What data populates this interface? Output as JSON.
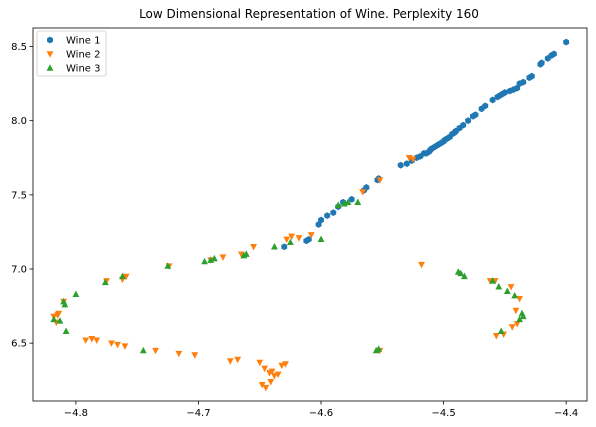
{
  "chart_data": {
    "type": "scatter",
    "title": "Low Dimensional Representation of Wine. Perplexity 160",
    "xlabel": "",
    "ylabel": "",
    "xlim": [
      -4.835,
      -4.383
    ],
    "ylim": [
      6.11,
      8.625
    ],
    "xticks": [
      -4.8,
      -4.7,
      -4.6,
      -4.5,
      -4.4
    ],
    "xtick_labels": [
      "−4.8",
      "−4.7",
      "−4.6",
      "−4.5",
      "−4.4"
    ],
    "yticks": [
      6.5,
      7.0,
      7.5,
      8.0,
      8.5
    ],
    "ytick_labels": [
      "6.5",
      "7.0",
      "7.5",
      "8.0",
      "8.5"
    ],
    "grid": false,
    "legend_position": "top-left",
    "series": [
      {
        "name": "Wine 1",
        "color": "#1f77b4",
        "marker": "hexagon",
        "x": [
          -4.4,
          -4.41,
          -4.412,
          -4.415,
          -4.42,
          -4.421,
          -4.428,
          -4.43,
          -4.435,
          -4.438,
          -4.44,
          -4.443,
          -4.446,
          -4.45,
          -4.452,
          -4.454,
          -4.456,
          -4.46,
          -4.466,
          -4.469,
          -4.474,
          -4.476,
          -4.48,
          -4.484,
          -4.487,
          -4.49,
          -4.491,
          -4.493,
          -4.495,
          -4.497,
          -4.499,
          -4.5,
          -4.502,
          -4.504,
          -4.506,
          -4.508,
          -4.51,
          -4.511,
          -4.512,
          -4.514,
          -4.516,
          -4.519,
          -4.522,
          -4.526,
          -4.53,
          -4.535,
          -4.553,
          -4.554,
          -4.563,
          -4.565,
          -4.575,
          -4.582,
          -4.586,
          -4.59,
          -4.595,
          -4.6,
          -4.602,
          -4.61,
          -4.612,
          -4.63
        ],
        "y": [
          8.53,
          8.45,
          8.44,
          8.42,
          8.39,
          8.38,
          8.3,
          8.29,
          8.26,
          8.25,
          8.22,
          8.21,
          8.2,
          8.19,
          8.18,
          8.17,
          8.16,
          8.14,
          8.1,
          8.08,
          8.04,
          8.03,
          8.0,
          7.97,
          7.95,
          7.93,
          7.92,
          7.91,
          7.89,
          7.88,
          7.87,
          7.86,
          7.85,
          7.84,
          7.83,
          7.82,
          7.81,
          7.8,
          7.79,
          7.78,
          7.78,
          7.76,
          7.75,
          7.73,
          7.71,
          7.7,
          7.61,
          7.6,
          7.55,
          7.53,
          7.47,
          7.45,
          7.42,
          7.38,
          7.36,
          7.33,
          7.3,
          7.2,
          7.19,
          7.15
        ]
      },
      {
        "name": "Wine 2",
        "color": "#ff7f0e",
        "marker": "triangle-down",
        "x": [
          -4.528,
          -4.525,
          -4.552,
          -4.566,
          -4.608,
          -4.618,
          -4.624,
          -4.628,
          -4.655,
          -4.665,
          -4.68,
          -4.69,
          -4.724,
          -4.759,
          -4.762,
          -4.775,
          -4.81,
          -4.814,
          -4.816,
          -4.815,
          -4.818,
          -4.783,
          -4.792,
          -4.787,
          -4.771,
          -4.766,
          -4.76,
          -4.735,
          -4.716,
          -4.703,
          -4.674,
          -4.668,
          -4.65,
          -4.646,
          -4.642,
          -4.64,
          -4.638,
          -4.635,
          -4.632,
          -4.629,
          -4.648,
          -4.645,
          -4.641,
          -4.552,
          -4.518,
          -4.462,
          -4.458,
          -4.445,
          -4.438,
          -4.441,
          -4.44,
          -4.444,
          -4.457,
          -4.451
        ],
        "y": [
          7.75,
          7.74,
          7.6,
          7.52,
          7.23,
          7.21,
          7.22,
          7.2,
          7.15,
          7.1,
          7.08,
          7.06,
          7.02,
          6.95,
          6.93,
          6.92,
          6.78,
          6.7,
          6.64,
          6.69,
          6.68,
          6.52,
          6.52,
          6.53,
          6.5,
          6.49,
          6.48,
          6.45,
          6.43,
          6.42,
          6.38,
          6.39,
          6.37,
          6.33,
          6.3,
          6.31,
          6.28,
          6.29,
          6.35,
          6.36,
          6.22,
          6.2,
          6.24,
          6.45,
          7.03,
          6.92,
          6.92,
          6.88,
          6.8,
          6.72,
          6.63,
          6.61,
          6.55,
          6.56
        ]
      },
      {
        "name": "Wine 3",
        "color": "#2ca02c",
        "marker": "triangle-up",
        "x": [
          -4.57,
          -4.578,
          -4.581,
          -4.586,
          -4.6,
          -4.625,
          -4.638,
          -4.661,
          -4.663,
          -4.687,
          -4.69,
          -4.695,
          -4.725,
          -4.762,
          -4.776,
          -4.8,
          -4.81,
          -4.818,
          -4.813,
          -4.809,
          -4.808,
          -4.745,
          -4.555,
          -4.553,
          -4.488,
          -4.486,
          -4.483,
          -4.46,
          -4.455,
          -4.448,
          -4.442,
          -4.436,
          -4.435,
          -4.438,
          -4.453
        ],
        "y": [
          7.45,
          7.45,
          7.44,
          7.43,
          7.2,
          7.18,
          7.15,
          7.1,
          7.09,
          7.07,
          7.06,
          7.05,
          7.02,
          6.95,
          6.91,
          6.83,
          6.78,
          6.66,
          6.65,
          6.76,
          6.58,
          6.45,
          6.45,
          6.46,
          6.98,
          6.97,
          6.95,
          6.92,
          6.88,
          6.85,
          6.82,
          6.7,
          6.68,
          6.66,
          6.58
        ]
      }
    ]
  }
}
